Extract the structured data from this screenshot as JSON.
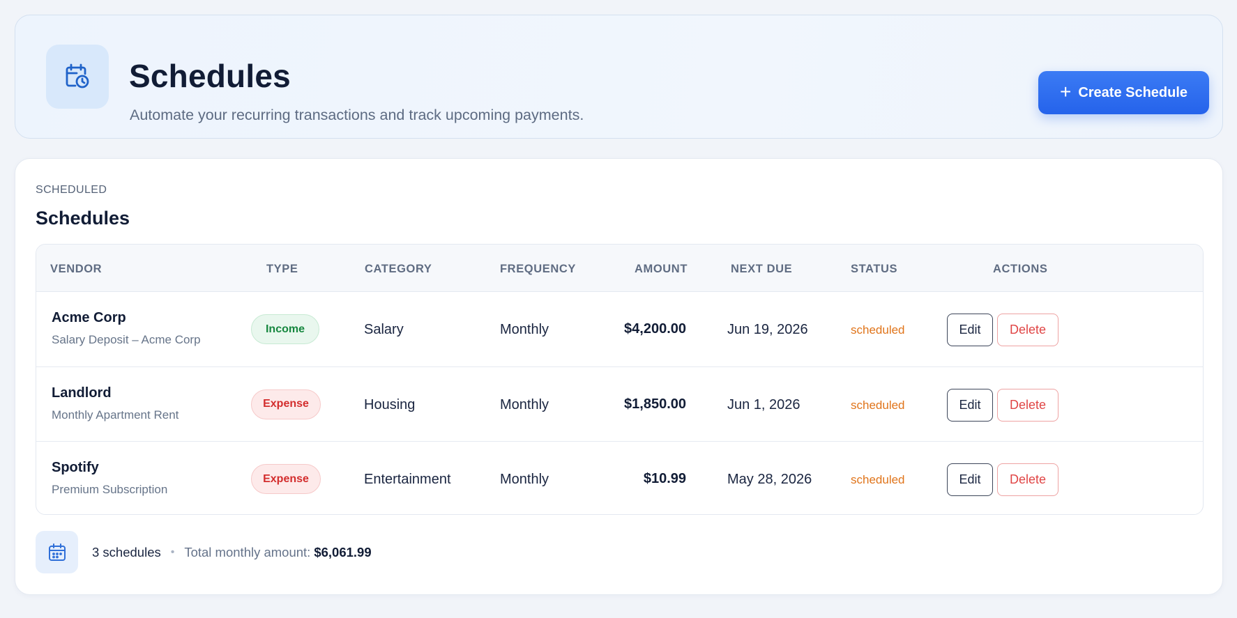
{
  "header": {
    "title": "Schedules",
    "subtitle": "Automate your recurring transactions and track upcoming payments.",
    "icon": "calendar-clock-icon",
    "create_button": {
      "icon": "plus-icon",
      "label": "Create Schedule"
    }
  },
  "section": {
    "eyebrow": "SCHEDULED",
    "title": "Schedules"
  },
  "table": {
    "columns": [
      "VENDOR",
      "TYPE",
      "CATEGORY",
      "FREQUENCY",
      "AMOUNT",
      "NEXT DUE",
      "STATUS",
      "ACTIONS"
    ],
    "rows": [
      {
        "vendor": "Acme Corp",
        "description": "Salary Deposit – Acme Corp",
        "type": "Income",
        "category": "Salary",
        "frequency": "Monthly",
        "amount": "$4,200.00",
        "next_due": "Jun 19, 2026",
        "status": "scheduled",
        "edit_label": "Edit",
        "delete_label": "Delete"
      },
      {
        "vendor": "Landlord",
        "description": "Monthly Apartment Rent",
        "type": "Expense",
        "category": "Housing",
        "frequency": "Monthly",
        "amount": "$1,850.00",
        "next_due": "Jun 1, 2026",
        "status": "scheduled",
        "edit_label": "Edit",
        "delete_label": "Delete"
      },
      {
        "vendor": "Spotify",
        "description": "Premium Subscription",
        "type": "Expense",
        "category": "Entertainment",
        "frequency": "Monthly",
        "amount": "$10.99",
        "next_due": "May 28, 2026",
        "status": "scheduled",
        "edit_label": "Edit",
        "delete_label": "Delete"
      }
    ]
  },
  "footer": {
    "icon": "calendar-icon",
    "count": "3 schedules",
    "total_label": "Total monthly amount:",
    "total_value": "$6,061.99"
  },
  "colors": {
    "primary": "#2563eb",
    "income": "#16873f",
    "expense": "#d32d2d",
    "status_scheduled": "#e0741a"
  }
}
